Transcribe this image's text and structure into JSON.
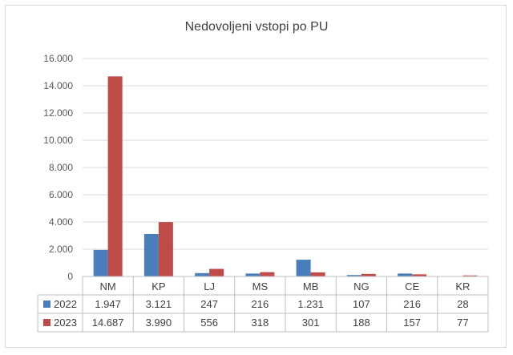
{
  "chart_data": {
    "type": "bar",
    "title": "Nedovoljeni vstopi po PU",
    "categories": [
      "NM",
      "KP",
      "LJ",
      "MS",
      "MB",
      "NG",
      "CE",
      "KR"
    ],
    "series": [
      {
        "name": "2022",
        "color": "#4a7ebb",
        "values": [
          1947,
          3121,
          247,
          216,
          1231,
          107,
          216,
          28
        ],
        "labels": [
          "1.947",
          "3.121",
          "247",
          "216",
          "1.231",
          "107",
          "216",
          "28"
        ]
      },
      {
        "name": "2023",
        "color": "#be4b48",
        "values": [
          14687,
          3990,
          556,
          318,
          301,
          188,
          157,
          77
        ],
        "labels": [
          "14.687",
          "3.990",
          "556",
          "318",
          "301",
          "188",
          "157",
          "77"
        ]
      }
    ],
    "y_ticks": [
      {
        "value": 0,
        "label": "0"
      },
      {
        "value": 2000,
        "label": "2.000"
      },
      {
        "value": 4000,
        "label": "4.000"
      },
      {
        "value": 6000,
        "label": "6.000"
      },
      {
        "value": 8000,
        "label": "8.000"
      },
      {
        "value": 10000,
        "label": "10.000"
      },
      {
        "value": 12000,
        "label": "12.000"
      },
      {
        "value": 14000,
        "label": "14.000"
      },
      {
        "value": 16000,
        "label": "16.000"
      }
    ],
    "ylim": [
      0,
      16000
    ],
    "grid": true,
    "legend": "data-table"
  }
}
